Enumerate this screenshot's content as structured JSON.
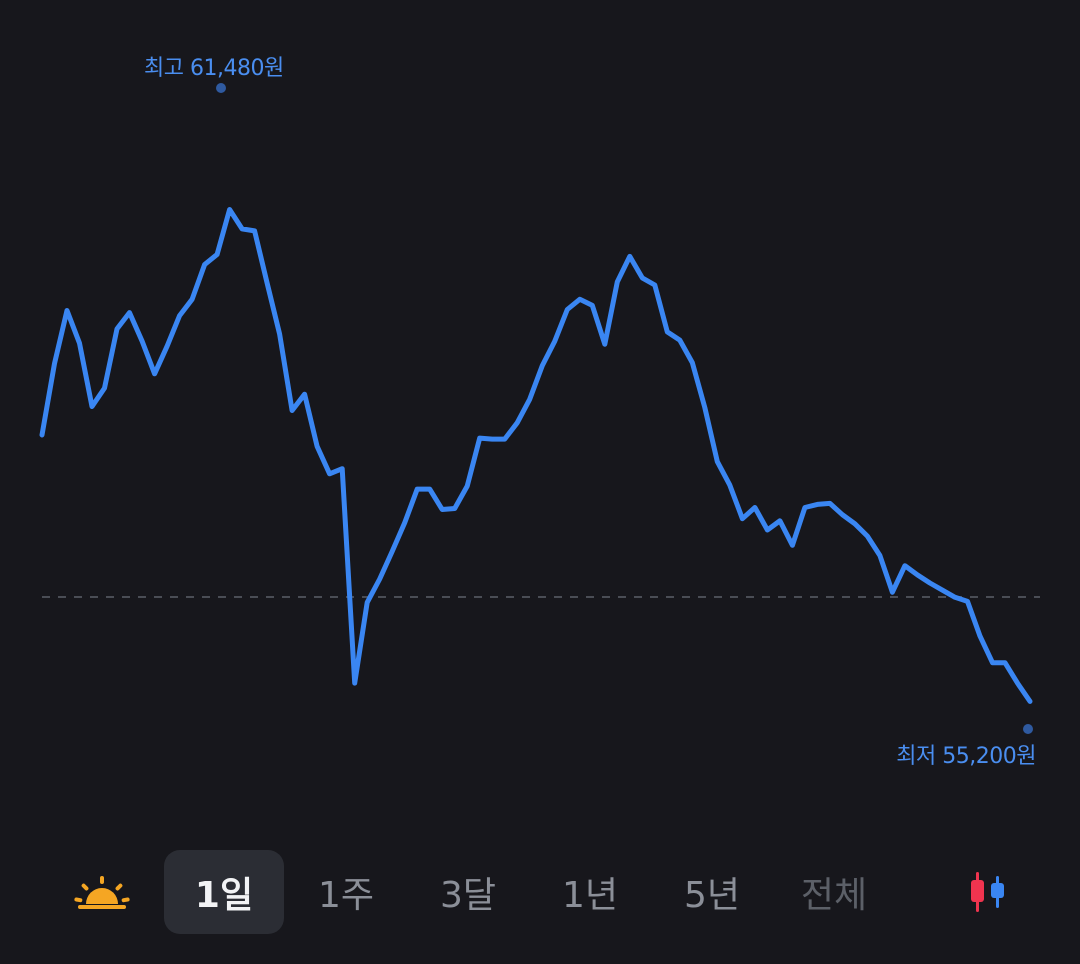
{
  "chart_data": {
    "type": "line",
    "series": [
      {
        "values": [
          58080,
          58780,
          59300,
          58980,
          58360,
          58540,
          59120,
          59280,
          59000,
          58680,
          58950,
          59250,
          59410,
          59750,
          59850,
          60290,
          60100,
          60080,
          59570,
          59070,
          58320,
          58480,
          57970,
          57700,
          57750,
          55650,
          56440,
          56670,
          56940,
          57220,
          57550,
          57550,
          57350,
          57360,
          57580,
          58050,
          58040,
          58040,
          58200,
          58430,
          58760,
          59000,
          59310,
          59410,
          59350,
          58970,
          59580,
          59830,
          59620,
          59550,
          59090,
          59010,
          58790,
          58350,
          57820,
          57590,
          57260,
          57370,
          57150,
          57240,
          57000,
          57370,
          57400,
          57410,
          57300,
          57210,
          57090,
          56900,
          56540,
          56800,
          56710,
          56630,
          56560,
          56490,
          56450,
          56110,
          55850,
          55850,
          55650,
          55470
        ]
      }
    ],
    "reference_line": "dashed",
    "high": {
      "label": "최고 61,480원",
      "value": 61480
    },
    "low": {
      "label": "최저 55,200원",
      "value": 55200
    },
    "line_color": "#3a86f2",
    "marker_color": "#2f5aa0",
    "grid": false
  },
  "tabs": {
    "sunrise_icon": "sunrise-icon",
    "items": [
      {
        "label": "1일",
        "active": true
      },
      {
        "label": "1주",
        "active": false
      },
      {
        "label": "3달",
        "active": false
      },
      {
        "label": "1년",
        "active": false
      },
      {
        "label": "5년",
        "active": false
      },
      {
        "label": "전체",
        "active": false,
        "dim": true
      }
    ],
    "candle_icon": "candlestick-icon"
  }
}
